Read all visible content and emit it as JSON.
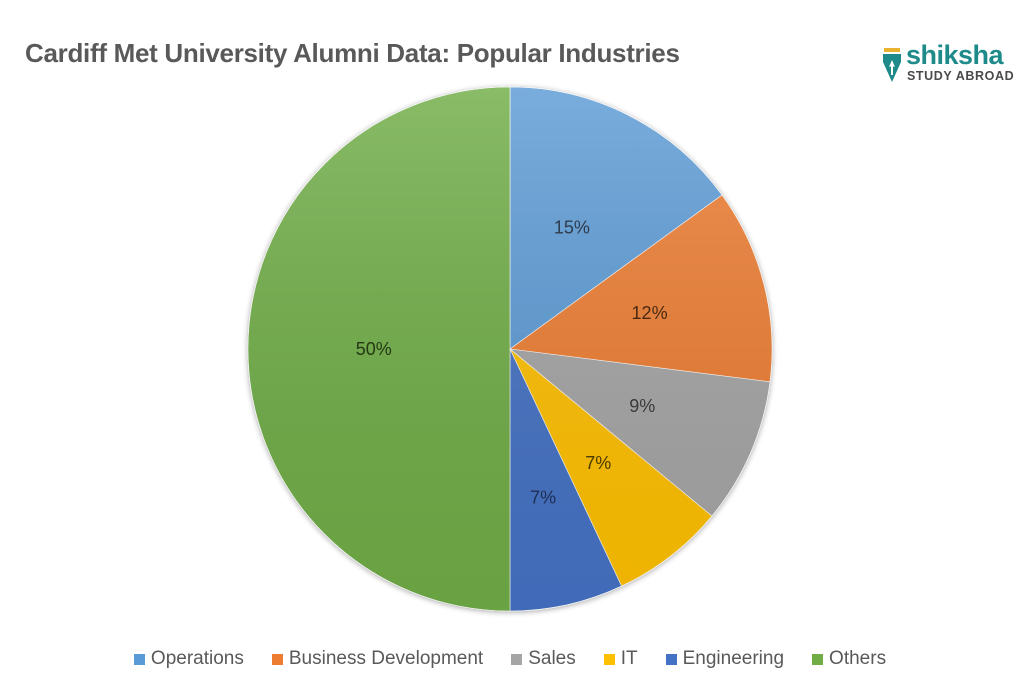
{
  "chart_data": {
    "type": "pie",
    "title": "Cardiff Met University Alumni Data: Popular Industries",
    "categories": [
      "Operations",
      "Business Development",
      "Sales",
      "IT",
      "Engineering",
      "Others"
    ],
    "values": [
      15,
      12,
      9,
      7,
      7,
      50
    ],
    "labels": [
      "15%",
      "12%",
      "9%",
      "7%",
      "7%",
      "50%"
    ],
    "colors": [
      "#5b9bd5",
      "#ed7d31",
      "#a5a5a5",
      "#ffc000",
      "#4472c4",
      "#70ad47"
    ],
    "start_angle": "12 o'clock, clockwise",
    "legend_position": "bottom",
    "data_labels": "percentages inside slices"
  },
  "header": {
    "title": "Cardiff Met University Alumni Data: Popular Industries"
  },
  "logo": {
    "brand": "shiksha",
    "tagline": "STUDY ABROAD"
  },
  "legend": [
    {
      "label": "Operations",
      "color": "#5b9bd5"
    },
    {
      "label": "Business Development",
      "color": "#ed7d31"
    },
    {
      "label": "Sales",
      "color": "#a5a5a5"
    },
    {
      "label": "IT",
      "color": "#ffc000"
    },
    {
      "label": "Engineering",
      "color": "#4472c4"
    },
    {
      "label": "Others",
      "color": "#70ad47"
    }
  ]
}
